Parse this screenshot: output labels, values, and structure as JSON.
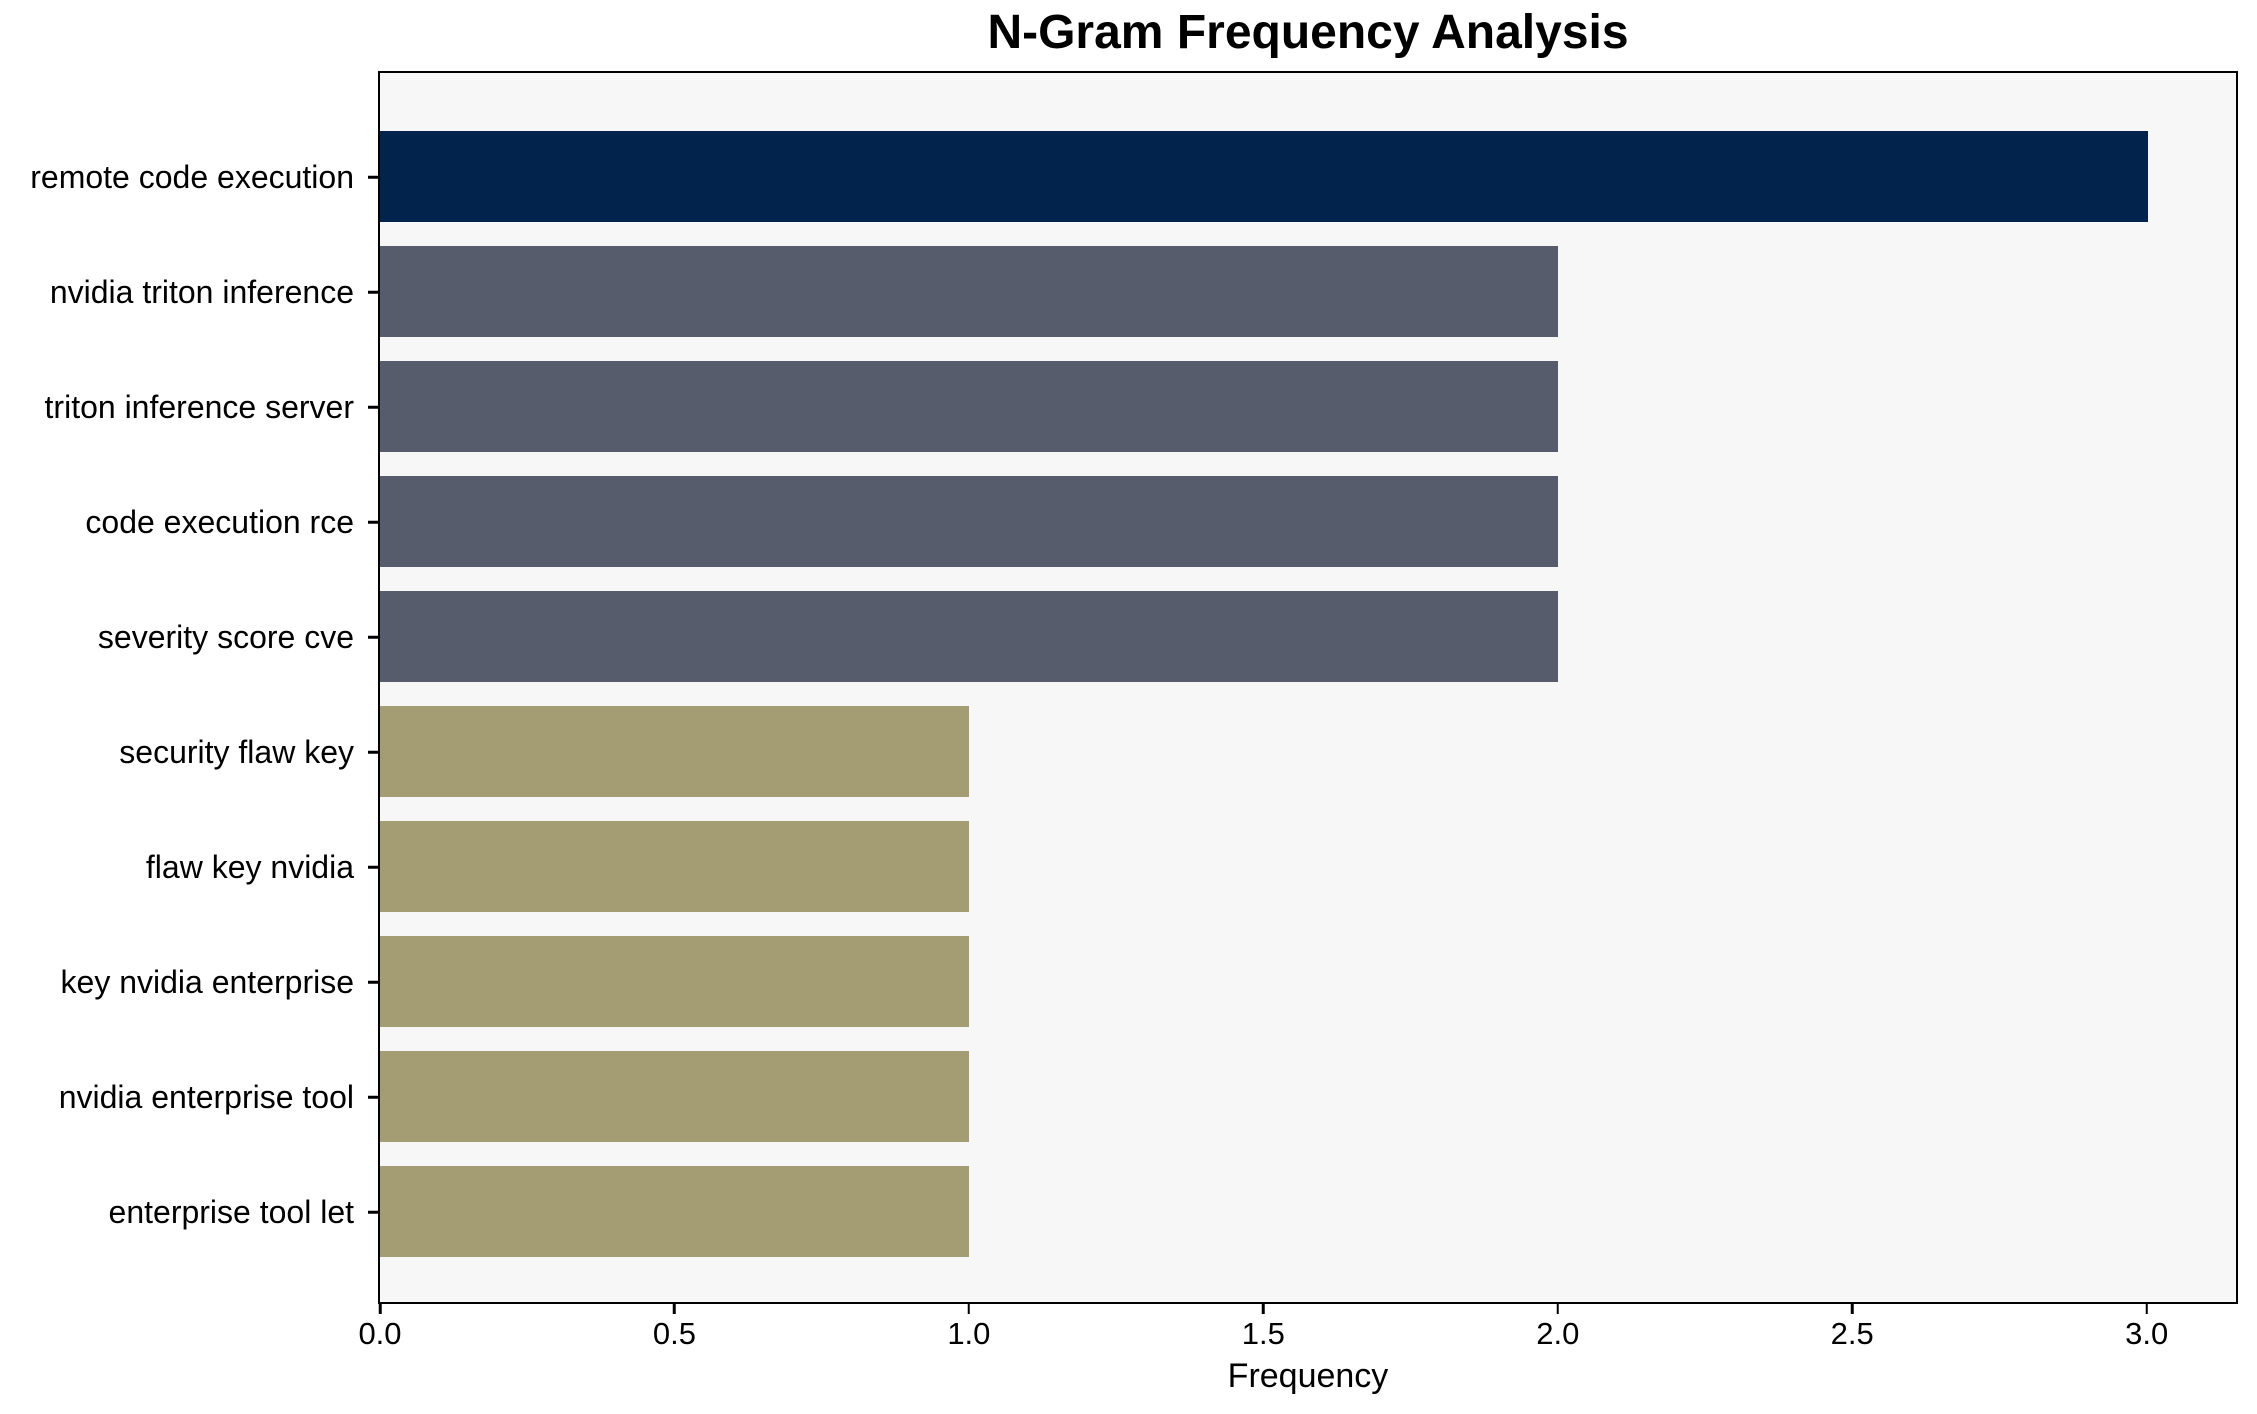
{
  "chart_data": {
    "type": "bar",
    "orientation": "horizontal",
    "title": "N-Gram Frequency Analysis",
    "xlabel": "Frequency",
    "ylabel": "",
    "categories": [
      "remote code execution",
      "nvidia triton inference",
      "triton inference server",
      "code execution rce",
      "severity score cve",
      "security flaw key",
      "flaw key nvidia",
      "key nvidia enterprise",
      "nvidia enterprise tool",
      "enterprise tool let"
    ],
    "values": [
      3,
      2,
      2,
      2,
      2,
      1,
      1,
      1,
      1,
      1
    ],
    "bar_colors": [
      "#02234c",
      "#565c6b",
      "#565c6b",
      "#565c6b",
      "#565c6b",
      "#a49c72",
      "#a49c72",
      "#a49c72",
      "#a49c72",
      "#a49c72"
    ],
    "xtick_labels": [
      "0.0",
      "0.5",
      "1.0",
      "1.5",
      "2.0",
      "2.5",
      "3.0"
    ],
    "xtick_values": [
      0,
      0.5,
      1.0,
      1.5,
      2.0,
      2.5,
      3.0
    ],
    "xlim": [
      0,
      3.15
    ],
    "grid": false,
    "legend": null,
    "colors": {
      "plot_background": "#f7f7f8",
      "figure_background": "#ffffff",
      "spine": "#000000",
      "text": "#000000"
    }
  }
}
